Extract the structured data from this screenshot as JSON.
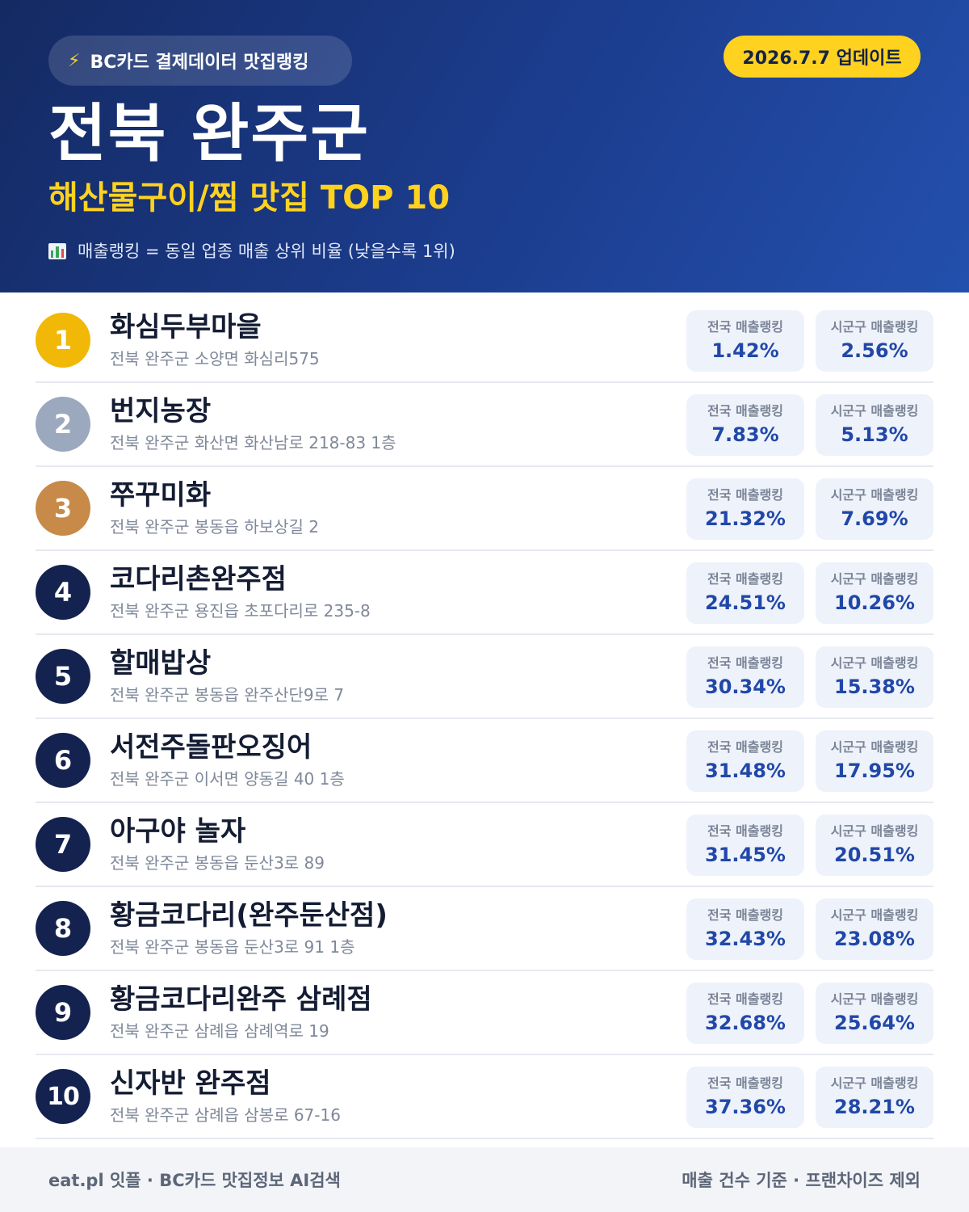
{
  "header": {
    "brand_icon": "lightning-bolt-icon",
    "brand_label": "BC카드 결제데이터 맛집랭킹",
    "update_label": "2026.7.7 업데이트",
    "region": "전북 완주군",
    "category": "해산물구이/찜 맛집 TOP 10",
    "legend_icon": "bar-chart-icon",
    "legend": "매출랭킹 = 동일 업종 매출 상위 비율 (낮을수록 1위)"
  },
  "stat_labels": {
    "national": "전국 매출랭킹",
    "local": "시군구 매출랭킹"
  },
  "colors": {
    "header_bg": "#1c3d8f",
    "accent_yellow": "#ffd21f",
    "rank_gold": "#f1b807",
    "rank_silver": "#9ba8be",
    "rank_bronze": "#c78a49",
    "rank_default": "#14224f",
    "stat_value": "#2148a8"
  },
  "restaurants": [
    {
      "rank": "1",
      "name": "화심두부마을",
      "address": "전북 완주군 소양면 화심리575",
      "national": "1.42%",
      "local": "2.56%"
    },
    {
      "rank": "2",
      "name": "번지농장",
      "address": "전북 완주군 화산면 화산남로 218-83 1층",
      "national": "7.83%",
      "local": "5.13%"
    },
    {
      "rank": "3",
      "name": "쭈꾸미화",
      "address": "전북 완주군 봉동읍 하보상길 2",
      "national": "21.32%",
      "local": "7.69%"
    },
    {
      "rank": "4",
      "name": "코다리촌완주점",
      "address": "전북 완주군 용진읍 초포다리로 235-8",
      "national": "24.51%",
      "local": "10.26%"
    },
    {
      "rank": "5",
      "name": "할매밥상",
      "address": "전북 완주군 봉동읍 완주산단9로 7",
      "national": "30.34%",
      "local": "15.38%"
    },
    {
      "rank": "6",
      "name": "서전주돌판오징어",
      "address": "전북 완주군 이서면 양동길 40 1층",
      "national": "31.48%",
      "local": "17.95%"
    },
    {
      "rank": "7",
      "name": "아구야 놀자",
      "address": "전북 완주군 봉동읍 둔산3로 89",
      "national": "31.45%",
      "local": "20.51%"
    },
    {
      "rank": "8",
      "name": "황금코다리(완주둔산점)",
      "address": "전북 완주군 봉동읍 둔산3로 91 1층",
      "national": "32.43%",
      "local": "23.08%"
    },
    {
      "rank": "9",
      "name": "황금코다리완주 삼례점",
      "address": "전북 완주군 삼례읍 삼례역로 19",
      "national": "32.68%",
      "local": "25.64%"
    },
    {
      "rank": "10",
      "name": "신자반 완주점",
      "address": "전북 완주군 삼례읍 삼봉로 67-16",
      "national": "37.36%",
      "local": "28.21%"
    }
  ],
  "footer": {
    "left": "eat.pl 잇플 · BC카드 맛집정보 AI검색",
    "right": "매출 건수 기준 · 프랜차이즈 제외"
  }
}
